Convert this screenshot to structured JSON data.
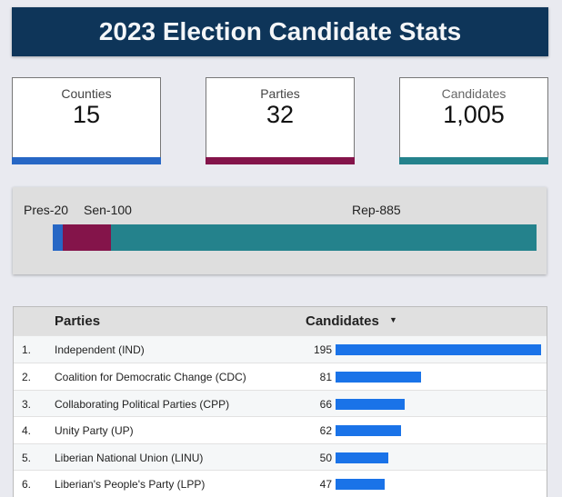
{
  "title": "2023 Election Candidate Stats",
  "scorecards": [
    {
      "label": "Counties",
      "value": "15",
      "color": "#2767c5"
    },
    {
      "label": "Parties",
      "value": "32",
      "color": "#84144a"
    },
    {
      "label": "Candidates",
      "value": "1,005",
      "color": "#24828c"
    }
  ],
  "breakdown": {
    "segments": [
      {
        "label": "Pres-20",
        "value": 20,
        "color": "#2767c5"
      },
      {
        "label": "Sen-100",
        "value": 100,
        "color": "#84144a"
      },
      {
        "label": "Rep-885",
        "value": 885,
        "color": "#24828c"
      }
    ]
  },
  "table": {
    "headers": {
      "party": "Parties",
      "candidates": "Candidates"
    },
    "sort_icon": "caret-down-icon",
    "bar_color": "#1a73e8",
    "rows": [
      {
        "rank": "1.",
        "party": "Independent (IND)",
        "candidates": 195
      },
      {
        "rank": "2.",
        "party": "Coalition for Democratic Change (CDC)",
        "candidates": 81
      },
      {
        "rank": "3.",
        "party": "Collaborating Political Parties (CPP)",
        "candidates": 66
      },
      {
        "rank": "4.",
        "party": "Unity Party (UP)",
        "candidates": 62
      },
      {
        "rank": "5.",
        "party": "Liberian National Union (LINU)",
        "candidates": 50
      },
      {
        "rank": "6.",
        "party": "Liberian's People's Party (LPP)",
        "candidates": 47
      }
    ]
  }
}
